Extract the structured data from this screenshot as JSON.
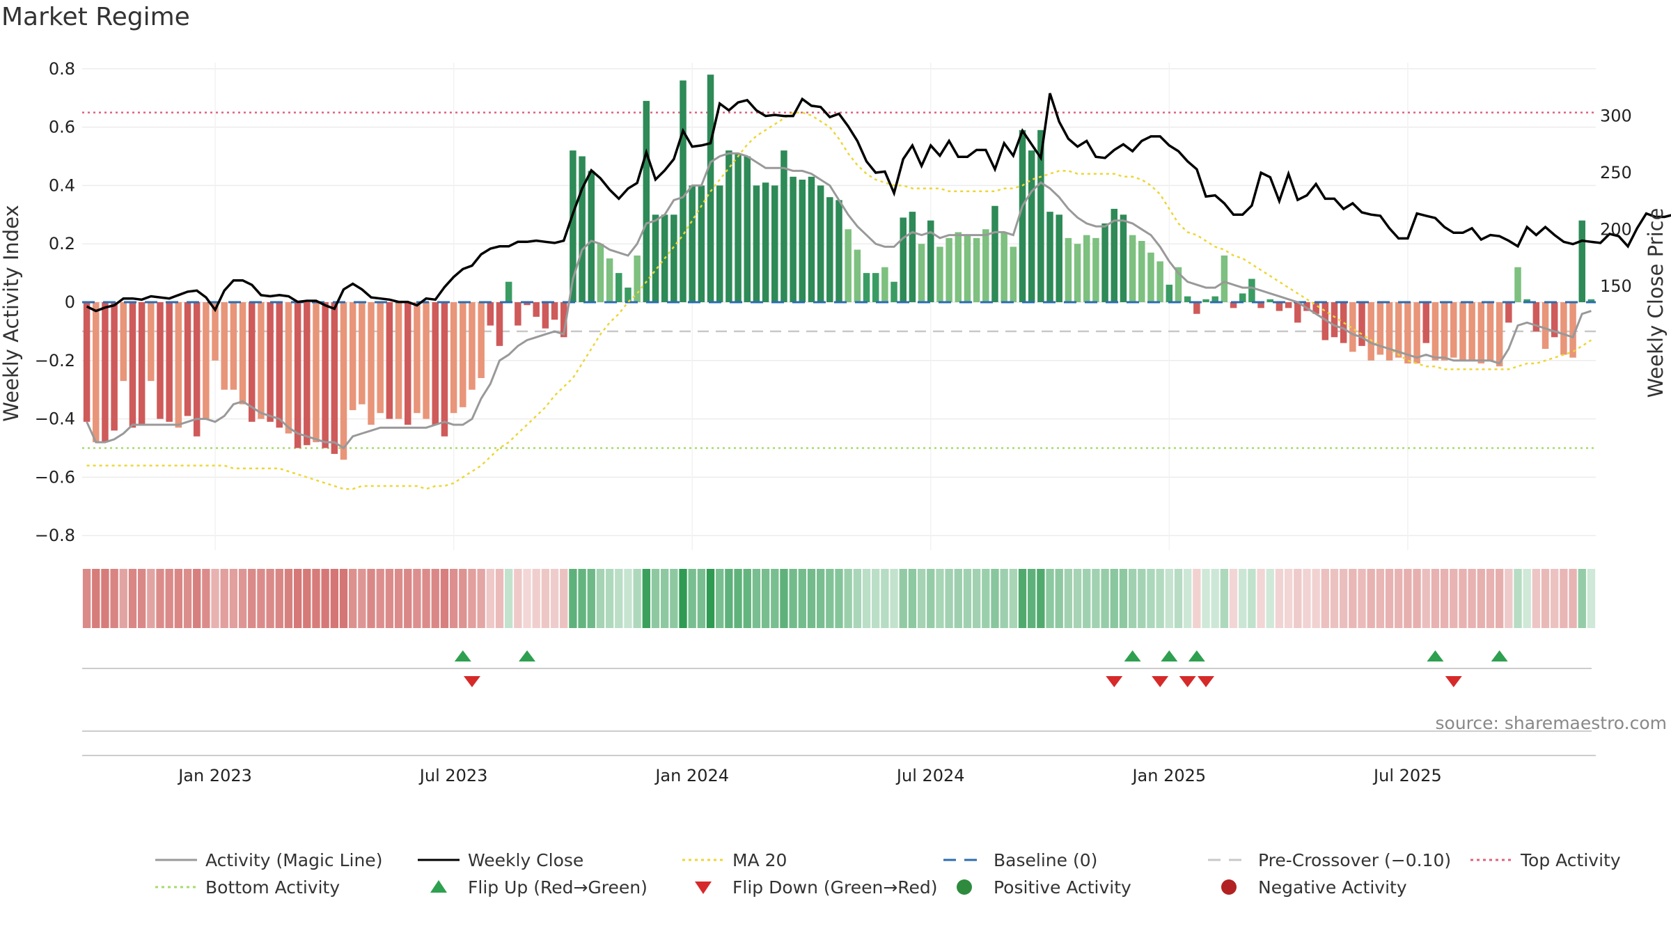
{
  "title": "Market Regime",
  "source": "source: sharemaestro.com",
  "chart_data": {
    "type": "bar",
    "x_ticks": [
      "Jan 2023",
      "Jul 2023",
      "Jan 2024",
      "Jul 2024",
      "Jan 2025",
      "Jul 2025"
    ],
    "x_tick_weeks": [
      14,
      40,
      66,
      92,
      118,
      144
    ],
    "y_left": {
      "label": "Weekly Activity Index",
      "ticks": [
        0.8,
        0.6,
        0.4,
        0.2,
        0,
        -0.2,
        -0.4,
        -0.6,
        -0.8
      ],
      "tick_labels": [
        "0.8",
        "0.6",
        "0.4",
        "0.2",
        "0",
        "−0.2",
        "−0.4",
        "−0.6",
        "−0.8"
      ],
      "ylim": [
        -0.8,
        0.8
      ]
    },
    "y_right": {
      "label": "Weekly Close Price",
      "ticks": [
        300,
        250,
        200,
        150
      ],
      "tick_labels": [
        "300",
        "250",
        "200",
        "150"
      ]
    },
    "levels": {
      "top": 0.65,
      "bottom": -0.5,
      "baseline": 0,
      "pre_crossover": -0.1
    },
    "activity": [
      -0.41,
      -0.48,
      -0.48,
      -0.44,
      -0.27,
      -0.43,
      -0.42,
      -0.27,
      -0.4,
      -0.41,
      -0.43,
      -0.39,
      -0.46,
      -0.4,
      -0.2,
      -0.3,
      -0.3,
      -0.35,
      -0.41,
      -0.4,
      -0.41,
      -0.43,
      -0.45,
      -0.5,
      -0.49,
      -0.48,
      -0.5,
      -0.52,
      -0.54,
      -0.37,
      -0.35,
      -0.42,
      -0.38,
      -0.4,
      -0.4,
      -0.42,
      -0.38,
      -0.4,
      -0.42,
      -0.46,
      -0.38,
      -0.36,
      -0.3,
      -0.26,
      -0.08,
      -0.15,
      0.07,
      -0.08,
      -0.01,
      -0.05,
      -0.09,
      -0.06,
      -0.12,
      0.52,
      0.5,
      0.45,
      0.2,
      0.15,
      0.1,
      0.05,
      0.16,
      0.69,
      0.3,
      0.3,
      0.3,
      0.76,
      0.4,
      0.4,
      0.78,
      0.4,
      0.52,
      0.51,
      0.5,
      0.4,
      0.41,
      0.4,
      0.52,
      0.43,
      0.42,
      0.43,
      0.4,
      0.36,
      0.35,
      0.25,
      0.18,
      0.1,
      0.1,
      0.12,
      0.07,
      0.29,
      0.31,
      0.2,
      0.28,
      0.19,
      0.22,
      0.24,
      0.23,
      0.22,
      0.25,
      0.33,
      0.24,
      0.19,
      0.59,
      0.52,
      0.59,
      0.31,
      0.3,
      0.22,
      0.2,
      0.23,
      0.22,
      0.27,
      0.32,
      0.3,
      0.23,
      0.21,
      0.17,
      0.14,
      0.06,
      0.12,
      0.02,
      -0.04,
      0.01,
      0.02,
      0.16,
      -0.02,
      0.03,
      0.08,
      -0.02,
      0.01,
      -0.03,
      -0.02,
      -0.07,
      -0.03,
      -0.04,
      -0.13,
      -0.12,
      -0.14,
      -0.17,
      -0.15,
      -0.2,
      -0.18,
      -0.2,
      -0.19,
      -0.21,
      -0.21,
      -0.14,
      -0.2,
      -0.2,
      -0.19,
      -0.2,
      -0.2,
      -0.21,
      -0.2,
      -0.22,
      -0.07,
      0.12,
      0.01,
      -0.1,
      -0.16,
      -0.12,
      -0.18,
      -0.19,
      0.28,
      0.01
    ],
    "magic_line": [
      -0.41,
      -0.48,
      -0.48,
      -0.47,
      -0.45,
      -0.42,
      -0.42,
      -0.42,
      -0.42,
      -0.42,
      -0.42,
      -0.41,
      -0.4,
      -0.4,
      -0.41,
      -0.39,
      -0.35,
      -0.34,
      -0.36,
      -0.38,
      -0.39,
      -0.4,
      -0.43,
      -0.45,
      -0.46,
      -0.47,
      -0.48,
      -0.48,
      -0.5,
      -0.46,
      -0.45,
      -0.44,
      -0.43,
      -0.43,
      -0.43,
      -0.43,
      -0.43,
      -0.43,
      -0.42,
      -0.41,
      -0.42,
      -0.42,
      -0.4,
      -0.33,
      -0.28,
      -0.2,
      -0.18,
      -0.15,
      -0.13,
      -0.12,
      -0.11,
      -0.1,
      -0.11,
      0.08,
      0.18,
      0.21,
      0.2,
      0.18,
      0.17,
      0.16,
      0.2,
      0.27,
      0.28,
      0.3,
      0.35,
      0.36,
      0.4,
      0.4,
      0.48,
      0.5,
      0.51,
      0.51,
      0.5,
      0.48,
      0.46,
      0.46,
      0.46,
      0.45,
      0.45,
      0.44,
      0.42,
      0.4,
      0.35,
      0.3,
      0.26,
      0.23,
      0.2,
      0.19,
      0.19,
      0.22,
      0.24,
      0.23,
      0.24,
      0.22,
      0.23,
      0.23,
      0.23,
      0.23,
      0.23,
      0.24,
      0.24,
      0.23,
      0.33,
      0.38,
      0.41,
      0.39,
      0.36,
      0.32,
      0.29,
      0.27,
      0.26,
      0.26,
      0.28,
      0.28,
      0.27,
      0.25,
      0.23,
      0.19,
      0.14,
      0.1,
      0.07,
      0.06,
      0.05,
      0.05,
      0.07,
      0.06,
      0.05,
      0.05,
      0.04,
      0.03,
      0.02,
      0.01,
      0.0,
      -0.02,
      -0.04,
      -0.06,
      -0.08,
      -0.09,
      -0.11,
      -0.12,
      -0.14,
      -0.15,
      -0.16,
      -0.17,
      -0.18,
      -0.19,
      -0.18,
      -0.19,
      -0.19,
      -0.2,
      -0.2,
      -0.2,
      -0.2,
      -0.2,
      -0.21,
      -0.16,
      -0.08,
      -0.07,
      -0.08,
      -0.09,
      -0.1,
      -0.11,
      -0.12,
      -0.04,
      -0.03
    ],
    "weekly_close": [
      132,
      128,
      131,
      133,
      139,
      139,
      138,
      141,
      140,
      139,
      142,
      145,
      146,
      140,
      129,
      146,
      155,
      155,
      151,
      142,
      141,
      142,
      141,
      136,
      137,
      137,
      133,
      130,
      147,
      152,
      147,
      140,
      139,
      138,
      136,
      136,
      133,
      139,
      138,
      149,
      158,
      165,
      168,
      178,
      183,
      185,
      185,
      189,
      189,
      190,
      189,
      188,
      190,
      214,
      236,
      252,
      245,
      235,
      227,
      236,
      241,
      268,
      244,
      252,
      262,
      287,
      273,
      274,
      276,
      311,
      305,
      312,
      314,
      305,
      300,
      301,
      300,
      300,
      315,
      309,
      308,
      299,
      302,
      291,
      278,
      260,
      250,
      251,
      232,
      262,
      274,
      256,
      274,
      265,
      278,
      264,
      264,
      270,
      270,
      253,
      276,
      265,
      287,
      275,
      263,
      320,
      295,
      280,
      273,
      278,
      264,
      263,
      270,
      275,
      269,
      278,
      282,
      282,
      274,
      269,
      260,
      253,
      229,
      230,
      223,
      213,
      213,
      221,
      250,
      246,
      225,
      249,
      226,
      230,
      240,
      227,
      227,
      218,
      223,
      215,
      213,
      212,
      201,
      192,
      192,
      214,
      212,
      210,
      202,
      197,
      197,
      201,
      191,
      195,
      194,
      190,
      185,
      202,
      195,
      202,
      195,
      189,
      187,
      190,
      189,
      188,
      196,
      194,
      185,
      201,
      214,
      211,
      211,
      213,
      207,
      204,
      207,
      232,
      231
    ],
    "ma20": [
      -0.56,
      -0.56,
      -0.56,
      -0.56,
      -0.56,
      -0.56,
      -0.56,
      -0.56,
      -0.56,
      -0.56,
      -0.56,
      -0.56,
      -0.56,
      -0.56,
      -0.56,
      -0.56,
      -0.57,
      -0.57,
      -0.57,
      -0.57,
      -0.57,
      -0.57,
      -0.58,
      -0.59,
      -0.6,
      -0.61,
      -0.62,
      -0.63,
      -0.64,
      -0.64,
      -0.63,
      -0.63,
      -0.63,
      -0.63,
      -0.63,
      -0.63,
      -0.63,
      -0.64,
      -0.63,
      -0.63,
      -0.62,
      -0.6,
      -0.58,
      -0.56,
      -0.53,
      -0.5,
      -0.48,
      -0.45,
      -0.42,
      -0.39,
      -0.36,
      -0.32,
      -0.29,
      -0.26,
      -0.21,
      -0.16,
      -0.11,
      -0.07,
      -0.04,
      0.0,
      0.03,
      0.07,
      0.11,
      0.15,
      0.19,
      0.23,
      0.28,
      0.33,
      0.38,
      0.42,
      0.46,
      0.5,
      0.54,
      0.57,
      0.59,
      0.61,
      0.63,
      0.65,
      0.65,
      0.64,
      0.62,
      0.6,
      0.56,
      0.51,
      0.47,
      0.44,
      0.42,
      0.41,
      0.4,
      0.4,
      0.39,
      0.39,
      0.39,
      0.39,
      0.38,
      0.38,
      0.38,
      0.38,
      0.38,
      0.38,
      0.39,
      0.39,
      0.4,
      0.42,
      0.43,
      0.44,
      0.45,
      0.45,
      0.44,
      0.44,
      0.44,
      0.44,
      0.44,
      0.43,
      0.43,
      0.42,
      0.4,
      0.37,
      0.32,
      0.27,
      0.24,
      0.23,
      0.21,
      0.19,
      0.18,
      0.16,
      0.15,
      0.13,
      0.11,
      0.09,
      0.07,
      0.05,
      0.03,
      0.01,
      -0.01,
      -0.03,
      -0.05,
      -0.07,
      -0.09,
      -0.11,
      -0.13,
      -0.15,
      -0.16,
      -0.18,
      -0.2,
      -0.21,
      -0.22,
      -0.22,
      -0.23,
      -0.23,
      -0.23,
      -0.23,
      -0.23,
      -0.23,
      -0.23,
      -0.23,
      -0.22,
      -0.21,
      -0.21,
      -0.2,
      -0.19,
      -0.18,
      -0.17,
      -0.15,
      -0.13
    ],
    "flip_up_weeks": [
      41,
      48,
      114,
      118,
      121,
      147,
      154
    ],
    "flip_down_weeks": [
      42,
      112,
      117,
      120,
      122,
      149
    ],
    "legend": [
      {
        "label": "Activity (Magic Line)",
        "symbol": "line",
        "color": "#999999"
      },
      {
        "label": "Weekly Close",
        "symbol": "line",
        "color": "#000000"
      },
      {
        "label": "MA 20",
        "symbol": "dotted",
        "color": "#ecd636"
      },
      {
        "label": "Baseline (0)",
        "symbol": "dashed",
        "color": "#2b6cb0"
      },
      {
        "label": "Pre-Crossover (−0.10)",
        "symbol": "dashed",
        "color": "#c8c8c8"
      },
      {
        "label": "Top Activity",
        "symbol": "dotted",
        "color": "#e0607e"
      },
      {
        "label": "Bottom Activity",
        "symbol": "dotted",
        "color": "#a6db6b"
      },
      {
        "label": "Flip Up (Red→Green)",
        "symbol": "triangle-up",
        "color": "#2ea04f"
      },
      {
        "label": "Flip Down (Green→Red)",
        "symbol": "triangle-down",
        "color": "#d62a2a"
      },
      {
        "label": "Positive Activity",
        "symbol": "circle",
        "color": "#2e8b3e"
      },
      {
        "label": "Negative Activity",
        "symbol": "circle",
        "color": "#b22222"
      }
    ]
  }
}
